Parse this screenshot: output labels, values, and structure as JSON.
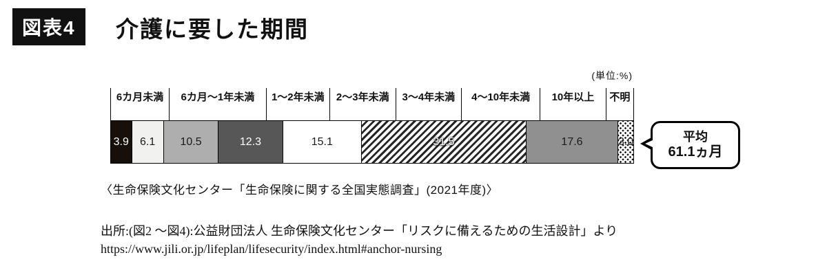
{
  "header": {
    "figure_badge": "図表4",
    "title": "介護に要した期間"
  },
  "chart": {
    "unit_label": "(単位:%)",
    "callout_line1": "平均",
    "callout_line2": "61.1ヵ月"
  },
  "chart_data": {
    "type": "bar",
    "variant": "horizontal-stacked-100",
    "title": "介護に要した期間",
    "unit": "%",
    "categories": [
      "6カ月未満",
      "6カ月〜1年未満",
      "1〜2年未満",
      "2〜3年未満",
      "3〜4年未満",
      "4〜10年未満",
      "10年以上",
      "不明"
    ],
    "values": [
      3.9,
      6.1,
      10.5,
      12.3,
      15.1,
      31.5,
      17.6,
      3.0
    ],
    "fills": [
      {
        "color": "#17100a",
        "text": "#ffffff"
      },
      {
        "color": "#f1f1ef",
        "text": "#1a1a1a"
      },
      {
        "color": "#aeaeae",
        "text": "#1a1a1a"
      },
      {
        "color": "#575757",
        "text": "#ffffff"
      },
      {
        "color": "#ffffff",
        "text": "#1a1a1a"
      },
      {
        "pattern": "hatch",
        "text": "#ffffff"
      },
      {
        "color": "#909090",
        "text": "#1a1a1a"
      },
      {
        "pattern": "dots",
        "text": "#1a1a1a"
      }
    ],
    "average_label": "平均 61.1ヵ月",
    "average_months": 61.1
  },
  "footer": {
    "survey_source": "〈生命保険文化センター「生命保険に関する全国実態調査」(2021年度)〉",
    "attribution": "出所:(図2 〜図4):公益財団法人 生命保険文化センター「リスクに備えるための生活設計」より",
    "url": "https://www.jili.or.jp/lifeplan/lifesecurity/index.html#anchor-nursing"
  }
}
